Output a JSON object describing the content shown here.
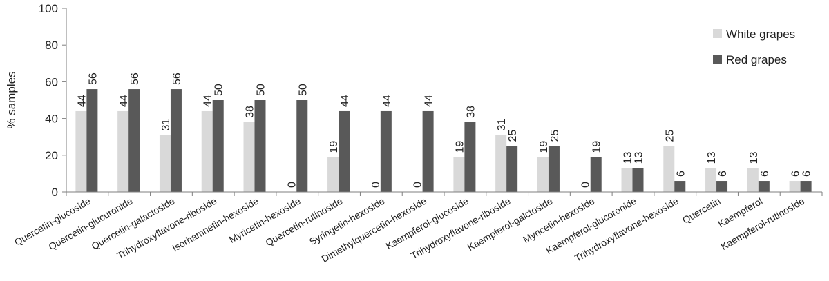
{
  "chart_data": {
    "type": "bar",
    "ylabel": "% samples",
    "xlabel": "",
    "title": "",
    "ylim": [
      0,
      100
    ],
    "yticks": [
      0,
      20,
      40,
      60,
      80,
      100
    ],
    "grid": false,
    "legend_position": "top-right",
    "categories": [
      "Quercetin-glucoside",
      "Quercetin-glucuronide",
      "Quercetin-galactoside",
      "Trihydroxyflavone-riboside",
      "Isorhamnetin-hexoside",
      "Myricetin-hexoside",
      "Quercetin-rutinoside",
      "Syringetin-hexoside",
      "Dimethylquercetin-hexoside",
      "Kaempferol-glucoside",
      "Trihydroxyflavone-riboside",
      "Kaempferol-galctoside",
      "Myricetin-hexoside",
      "Kaempferol-glucoronide",
      "Trihydroxyflavone-hexoside",
      "Quercetin",
      "Kaempferol",
      "Kaempferol-rutinoside"
    ],
    "series": [
      {
        "name": "White grapes",
        "color": "#d9d9d9",
        "values": [
          44,
          44,
          31,
          44,
          38,
          0,
          19,
          0,
          0,
          19,
          31,
          19,
          0,
          13,
          25,
          13,
          13,
          6
        ]
      },
      {
        "name": "Red grapes",
        "color": "#595959",
        "values": [
          56,
          56,
          56,
          50,
          50,
          50,
          44,
          44,
          44,
          38,
          25,
          25,
          19,
          13,
          6,
          6,
          6,
          6
        ]
      }
    ]
  }
}
